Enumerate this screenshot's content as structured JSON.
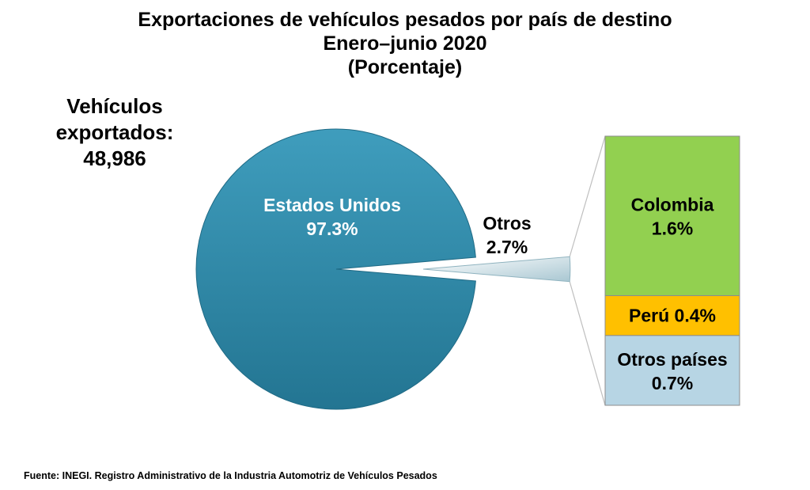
{
  "chart_data": {
    "type": "pie",
    "title": "Exportaciones de vehículos pesados por país de destino",
    "subtitle": "Enero–junio 2020",
    "unit_label": "(Porcentaje)",
    "slices": [
      {
        "label": "Estados Unidos",
        "value": 97.3,
        "value_label": "97.3%",
        "color": "#2e88a8"
      },
      {
        "label": "Otros",
        "value": 2.7,
        "value_label": "2.7%",
        "color": "#cfe0e6"
      }
    ],
    "breakdown": {
      "of": "Otros",
      "segments": [
        {
          "label": "Colombia",
          "value": 1.6,
          "value_label": "1.6%",
          "color": "#92d050"
        },
        {
          "label": "Perú",
          "value": 0.4,
          "value_label": "0.4%",
          "color": "#ffc000"
        },
        {
          "label": "Otros países",
          "value": 0.7,
          "value_label": "0.7%",
          "color": "#b7d5e4"
        }
      ]
    }
  },
  "total": {
    "line1": "Vehículos",
    "line2": "exportados:",
    "value": "48,986"
  },
  "source": "Fuente: INEGI. Registro Administrativo de la Industria Automotriz de Vehículos Pesados"
}
